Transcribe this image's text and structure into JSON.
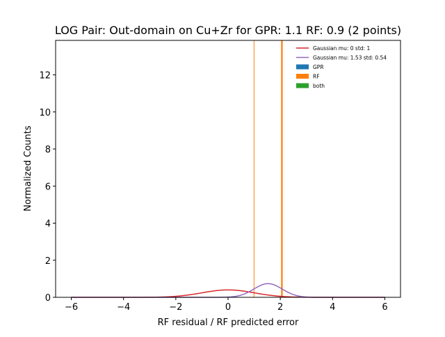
{
  "chart_data": {
    "type": "line",
    "title": "LOG Pair: Out-domain on Cu+Zr for GPR: 1.1 RF: 0.9 (2 points)",
    "xlabel": "RF residual / RF predicted error",
    "ylabel": "Normalized Counts",
    "xlim": [
      -6.6,
      6.6
    ],
    "ylim": [
      0,
      13.86
    ],
    "xticks": [
      -6,
      -4,
      -2,
      0,
      2,
      4,
      6
    ],
    "yticks": [
      0,
      2,
      4,
      6,
      8,
      10,
      12
    ],
    "grid": false,
    "legend_position": "top-right",
    "series": [
      {
        "name": "Gaussian mu: 0 std: 1",
        "kind": "gaussian",
        "mu": 0,
        "std": 1,
        "x_range": [
          -6,
          6
        ],
        "color": "#d62728"
      },
      {
        "name": "Gaussian mu: 1.53 std: 0.54",
        "kind": "gaussian",
        "mu": 1.53,
        "std": 0.54,
        "x_range": [
          -6,
          6
        ],
        "color": "#9467bd"
      },
      {
        "name": "GPR",
        "kind": "histogram",
        "color": "#1f77b4",
        "bins": []
      },
      {
        "name": "RF",
        "kind": "histogram",
        "color": "#ff7f0e",
        "bins": [
          {
            "x0": 0.98,
            "x1": 1.0,
            "height": 13.86
          },
          {
            "x0": 2.03,
            "x1": 2.09,
            "height": 13.86
          }
        ]
      },
      {
        "name": "both",
        "kind": "histogram",
        "color": "#2ca02c",
        "bins": []
      }
    ]
  }
}
